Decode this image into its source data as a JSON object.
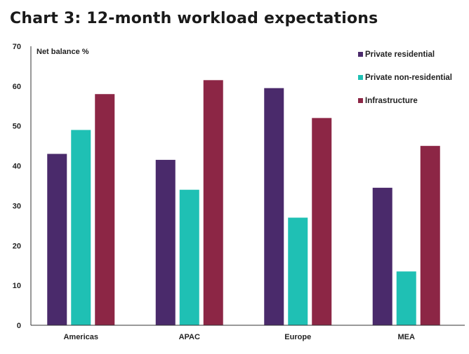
{
  "title": "Chart 3: 12-month workload expectations",
  "chart_data": {
    "type": "bar",
    "ylabel": "Net balance %",
    "ylim": [
      0,
      70
    ],
    "yticks": [
      0,
      10,
      20,
      30,
      40,
      50,
      60,
      70
    ],
    "categories": [
      "Americas",
      "APAC",
      "Europe",
      "MEA"
    ],
    "series": [
      {
        "name": "Private residential",
        "color": "#4a2a6b",
        "values": [
          43,
          41.5,
          59.5,
          34.5
        ]
      },
      {
        "name": "Private non-residential",
        "color": "#1fc0b4",
        "values": [
          49,
          34,
          27,
          13.5
        ]
      },
      {
        "name": "Infrastructure",
        "color": "#8c2645",
        "values": [
          58,
          61.5,
          52,
          45
        ]
      }
    ],
    "legend_position": "top-right",
    "grid": false
  }
}
